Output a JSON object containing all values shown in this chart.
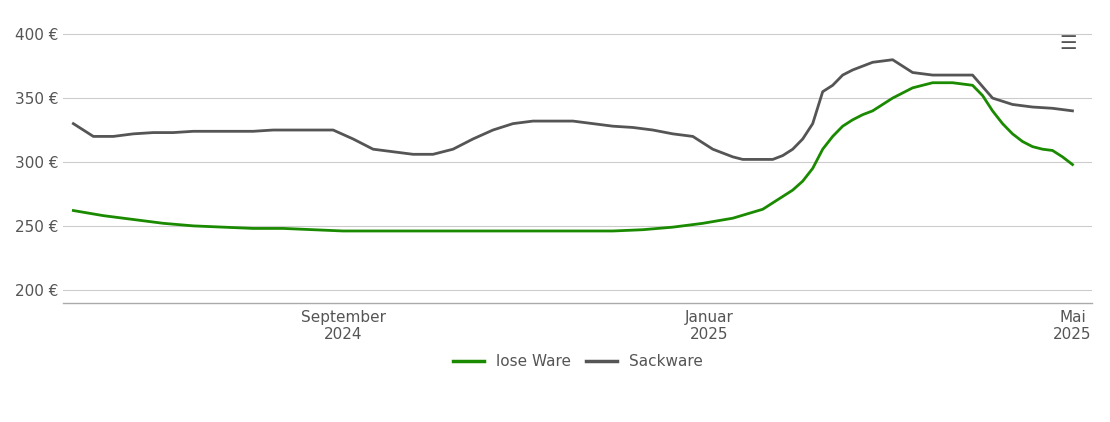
{
  "title": "",
  "background_color": "#ffffff",
  "grid_color": "#cccccc",
  "y_ticks": [
    200,
    250,
    300,
    350,
    400
  ],
  "y_tick_labels": [
    "200 €",
    "250 €",
    "300 €",
    "350 €",
    "400 €"
  ],
  "ylim": [
    190,
    415
  ],
  "x_tick_positions": [
    0.0,
    0.333,
    0.667,
    1.0
  ],
  "x_tick_labels": [
    "September\n2024",
    "Januar\n2025",
    "Mai\n2025"
  ],
  "legend_labels": [
    "lose Ware",
    "Sackware"
  ],
  "legend_colors": [
    "#1a8a00",
    "#555555"
  ],
  "lose_ware_x": [
    0,
    0.03,
    0.06,
    0.09,
    0.12,
    0.15,
    0.18,
    0.21,
    0.24,
    0.27,
    0.3,
    0.33,
    0.36,
    0.39,
    0.42,
    0.45,
    0.48,
    0.51,
    0.54,
    0.57,
    0.6,
    0.63,
    0.66,
    0.69,
    0.72,
    0.73,
    0.74,
    0.75,
    0.76,
    0.77,
    0.78,
    0.79,
    0.8,
    0.81,
    0.82,
    0.84,
    0.86,
    0.88,
    0.9,
    0.91,
    0.92,
    0.93,
    0.94,
    0.95,
    0.96,
    0.97,
    0.98,
    0.99,
    1.0
  ],
  "lose_ware_y": [
    262,
    258,
    255,
    252,
    250,
    249,
    248,
    248,
    247,
    246,
    246,
    246,
    246,
    246,
    246,
    246,
    246,
    246,
    246,
    247,
    249,
    252,
    256,
    263,
    278,
    285,
    295,
    310,
    320,
    328,
    333,
    337,
    340,
    345,
    350,
    358,
    362,
    362,
    360,
    352,
    340,
    330,
    322,
    316,
    312,
    310,
    309,
    304,
    298
  ],
  "sackware_x": [
    0,
    0.02,
    0.04,
    0.06,
    0.08,
    0.1,
    0.12,
    0.14,
    0.16,
    0.18,
    0.2,
    0.22,
    0.24,
    0.26,
    0.28,
    0.3,
    0.32,
    0.34,
    0.36,
    0.38,
    0.4,
    0.42,
    0.44,
    0.46,
    0.48,
    0.5,
    0.52,
    0.54,
    0.56,
    0.58,
    0.6,
    0.62,
    0.64,
    0.66,
    0.67,
    0.68,
    0.69,
    0.7,
    0.71,
    0.72,
    0.73,
    0.74,
    0.75,
    0.76,
    0.77,
    0.78,
    0.79,
    0.8,
    0.82,
    0.84,
    0.86,
    0.88,
    0.9,
    0.92,
    0.94,
    0.96,
    0.98,
    1.0
  ],
  "sackware_y": [
    330,
    320,
    320,
    322,
    323,
    323,
    324,
    324,
    324,
    324,
    325,
    325,
    325,
    325,
    318,
    310,
    308,
    306,
    306,
    310,
    318,
    325,
    330,
    332,
    332,
    332,
    330,
    328,
    327,
    325,
    322,
    320,
    310,
    304,
    302,
    302,
    302,
    302,
    305,
    310,
    318,
    330,
    355,
    360,
    368,
    372,
    375,
    378,
    380,
    370,
    368,
    368,
    368,
    350,
    345,
    343,
    342,
    340
  ]
}
